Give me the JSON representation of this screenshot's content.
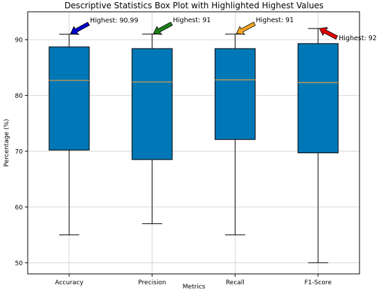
{
  "chart_data": {
    "type": "box",
    "title": "Descriptive Statistics Box Plot with Highlighted Highest Values",
    "xlabel": "Metrics",
    "ylabel": "Percentage (%)",
    "ylim": [
      48,
      95
    ],
    "yticks": [
      50,
      60,
      70,
      80,
      90
    ],
    "grid": true,
    "box_color": "#0077b6",
    "median_color": "#e6a23c",
    "categories": [
      "Accuracy",
      "Precision",
      "Recall",
      "F1-Score"
    ],
    "boxes": [
      {
        "whisker_low": 55,
        "q1": 70.2,
        "median": 82.7,
        "q3": 88.7,
        "whisker_high": 90.99
      },
      {
        "whisker_low": 57,
        "q1": 68.5,
        "median": 82.4,
        "q3": 88.4,
        "whisker_high": 91
      },
      {
        "whisker_low": 55,
        "q1": 72.1,
        "median": 82.8,
        "q3": 88.4,
        "whisker_high": 91
      },
      {
        "whisker_low": 50,
        "q1": 69.7,
        "median": 82.3,
        "q3": 89.3,
        "whisker_high": 92
      }
    ],
    "annotations": [
      {
        "label": "Highest: 90.99",
        "target": 90.99,
        "color": "#0000cc",
        "direction": "up-right"
      },
      {
        "label": "Highest: 91",
        "target": 91,
        "color": "#1a7f1a",
        "direction": "up-right"
      },
      {
        "label": "Highest: 91",
        "target": 91,
        "color": "#f5a623",
        "direction": "up-right"
      },
      {
        "label": "Highest: 92",
        "target": 92,
        "color": "#e00000",
        "direction": "down-right"
      }
    ]
  }
}
